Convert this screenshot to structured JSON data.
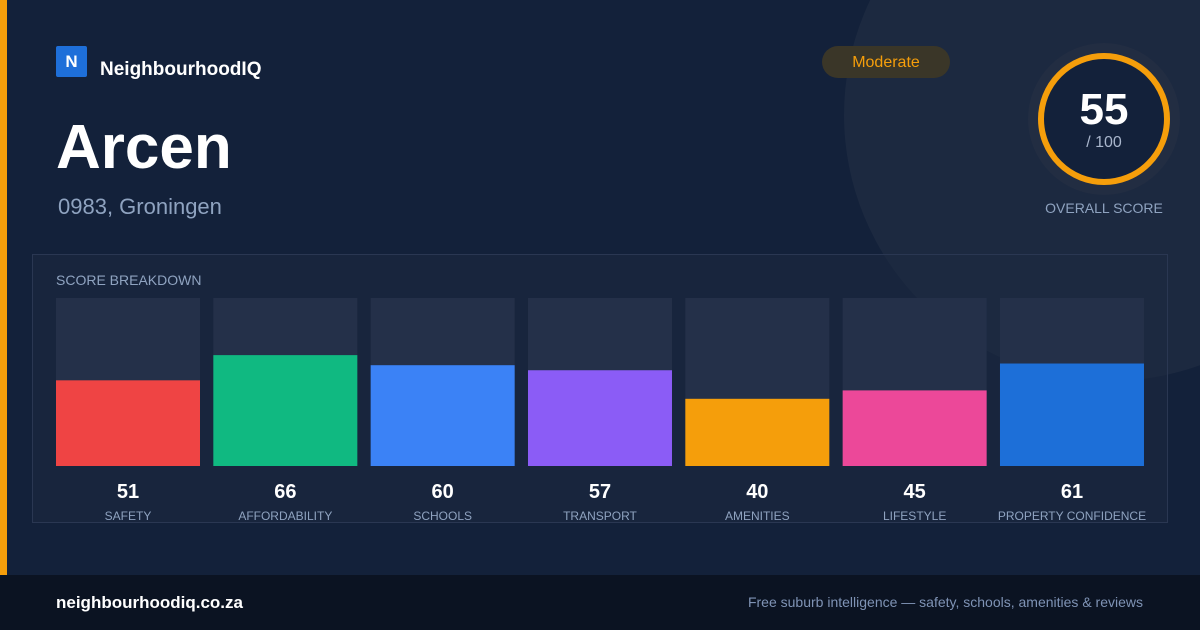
{
  "brand": {
    "logo": "N",
    "name": "NeighbourhoodIQ"
  },
  "suburb": {
    "name": "Arcen",
    "location": "0983, Groningen",
    "rating": "Moderate"
  },
  "overall": {
    "score": 55,
    "scale": {
      "value": 100,
      "label": "/ 100"
    },
    "caption": "OVERALL SCORE"
  },
  "breakdown": {
    "title": "SCORE BREAKDOWN",
    "items": [
      {
        "label": "SAFETY",
        "value": 51,
        "color": "#ef4444"
      },
      {
        "label": "AFFORDABILITY",
        "value": 66,
        "color": "#10b981"
      },
      {
        "label": "SCHOOLS",
        "value": 60,
        "color": "#3b82f6"
      },
      {
        "label": "TRANSPORT",
        "value": 57,
        "color": "#8b5cf6"
      },
      {
        "label": "AMENITIES",
        "value": 40,
        "color": "#f59e0b"
      },
      {
        "label": "LIFESTYLE",
        "value": 45,
        "color": "#ec4899"
      },
      {
        "label": "PROPERTY CONFIDENCE",
        "value": 61,
        "color": "#1d6fd8"
      }
    ]
  },
  "footer": {
    "site": "neighbourhoodiq.co.za",
    "tagline": "Free suburb intelligence — safety, schools, amenities & reviews"
  }
}
